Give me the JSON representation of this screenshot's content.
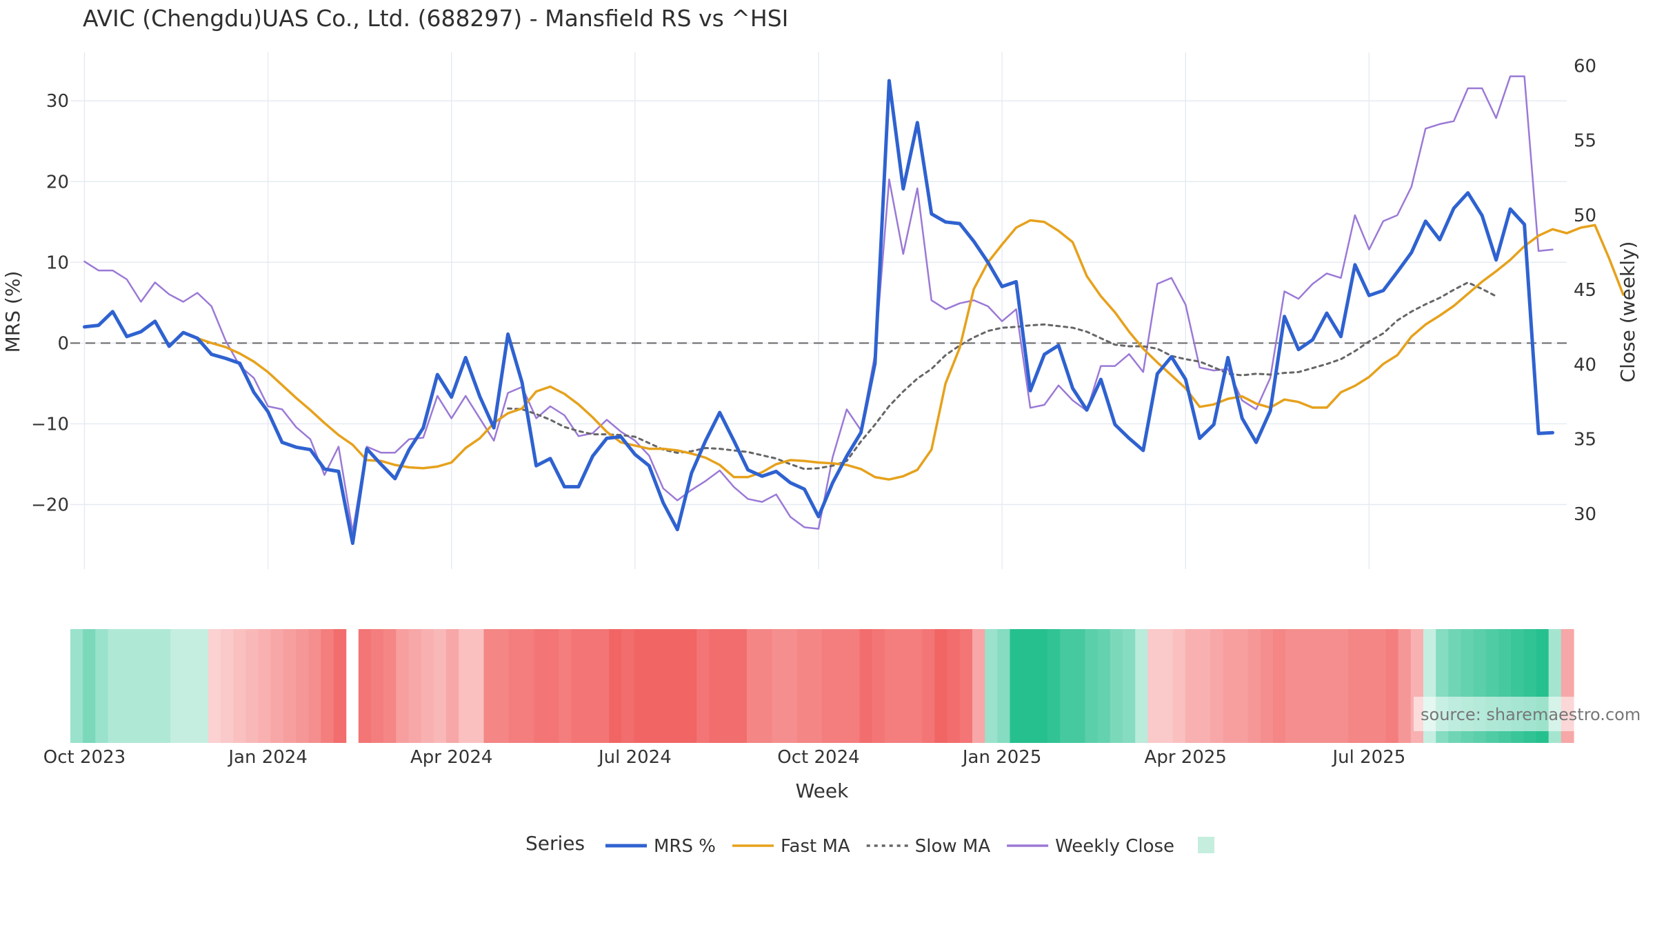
{
  "chart_data": {
    "type": "line",
    "title": "AVIC (Chengdu)UAS Co., Ltd. (688297) - Mansfield RS vs ^HSI",
    "xlabel": "Week",
    "ylabel": "MRS (%)",
    "y2label": "Close (weekly)",
    "legend_title": "Series",
    "legend_position": "bottom-center",
    "grid": true,
    "ylim": [
      -28,
      36
    ],
    "y2lim": [
      26.3,
      60.9
    ],
    "yticks": [
      -20,
      -10,
      0,
      10,
      20,
      30
    ],
    "yticklabels": [
      "−20",
      "−10",
      "0",
      "10",
      "20",
      "30"
    ],
    "y2ticks": [
      30,
      35,
      40,
      45,
      50,
      55,
      60
    ],
    "xlim_weeks": [
      -1,
      105
    ],
    "xticks": [
      {
        "label": "Oct 2023",
        "week": 0
      },
      {
        "label": "Jan 2024",
        "week": 13
      },
      {
        "label": "Apr 2024",
        "week": 26
      },
      {
        "label": "Jul 2024",
        "week": 39
      },
      {
        "label": "Oct 2024",
        "week": 52
      },
      {
        "label": "Jan 2025",
        "week": 65
      },
      {
        "label": "Apr 2025",
        "week": 78
      },
      {
        "label": "Jul 2025",
        "week": 91
      }
    ],
    "series": [
      {
        "name": "MRS %",
        "axis": "left",
        "color": "#2f62d0",
        "style": "solid",
        "start_week": 0,
        "values": [
          2.0,
          2.2,
          3.9,
          0.8,
          1.4,
          2.7,
          -0.4,
          1.3,
          0.6,
          -1.4,
          -1.9,
          -2.5,
          -6.1,
          -8.5,
          -12.3,
          -12.9,
          -13.2,
          -15.6,
          -15.9,
          -24.8,
          -13.1,
          -15.0,
          -16.8,
          -13.2,
          -10.5,
          -3.9,
          -6.7,
          -1.8,
          -6.6,
          -10.5,
          1.1,
          -4.9,
          -15.2,
          -14.3,
          -17.8,
          -17.8,
          -14.0,
          -11.8,
          -11.6,
          -13.8,
          -15.2,
          -19.8,
          -23.1,
          -16.1,
          -12.1,
          -8.6,
          -12.1,
          -15.7,
          -16.5,
          -15.9,
          -17.3,
          -18.1,
          -21.5,
          -17.3,
          -14.0,
          -11.1,
          -2.5,
          32.5,
          19.1,
          27.3,
          16.0,
          15.0,
          14.8,
          12.6,
          10.0,
          7.0,
          7.6,
          -5.9,
          -1.4,
          -0.3,
          -5.6,
          -8.3,
          -4.5,
          -10.1,
          -11.8,
          -13.3,
          -3.8,
          -1.7,
          -4.5,
          -11.8,
          -10.1,
          -1.8,
          -9.3,
          -12.3,
          -8.4,
          3.3,
          -0.8,
          0.4,
          3.7,
          0.8,
          9.7,
          5.9,
          6.5,
          8.8,
          11.2,
          15.1,
          12.8,
          16.7,
          18.6,
          15.8,
          10.3,
          16.6,
          14.7,
          -11.2,
          -11.1
        ]
      },
      {
        "name": "Fast MA",
        "axis": "left",
        "color": "#e6a11c",
        "style": "solid",
        "start_week": 8,
        "values": [
          0.6,
          0.0,
          -0.5,
          -1.3,
          -2.3,
          -3.6,
          -5.2,
          -6.8,
          -8.3,
          -9.9,
          -11.4,
          -12.6,
          -14.5,
          -14.6,
          -15.1,
          -15.4,
          -15.5,
          -15.3,
          -14.8,
          -13.0,
          -11.8,
          -9.9,
          -8.7,
          -8.1,
          -6.0,
          -5.4,
          -6.3,
          -7.6,
          -9.2,
          -11.0,
          -12.3,
          -12.7,
          -13.1,
          -13.1,
          -13.3,
          -13.7,
          -14.2,
          -15.1,
          -16.6,
          -16.6,
          -16.0,
          -15.0,
          -14.5,
          -14.6,
          -14.8,
          -14.9,
          -15.1,
          -15.6,
          -16.6,
          -16.9,
          -16.5,
          -15.7,
          -13.2,
          -5.0,
          -0.6,
          6.7,
          10.0,
          12.2,
          14.3,
          15.2,
          15.0,
          13.9,
          12.5,
          8.3,
          5.8,
          3.8,
          1.4,
          -0.7,
          -2.4,
          -4.0,
          -5.6,
          -7.9,
          -7.6,
          -6.9,
          -6.6,
          -7.5,
          -8.0,
          -7.0,
          -7.3,
          -8.0,
          -8.0,
          -6.1,
          -5.3,
          -4.2,
          -2.6,
          -1.5,
          0.8,
          2.3,
          3.4,
          4.6,
          6.1,
          7.6,
          8.9,
          10.3,
          12.0,
          13.3,
          14.1,
          13.6,
          14.3,
          14.6,
          10.5,
          6.0
        ]
      },
      {
        "name": "Slow MA",
        "axis": "left",
        "color": "#666666",
        "style": "dotted",
        "start_week": 30,
        "values": [
          -8.1,
          -8.2,
          -8.8,
          -9.5,
          -10.4,
          -10.9,
          -11.3,
          -11.3,
          -11.4,
          -11.6,
          -12.4,
          -13.2,
          -13.6,
          -13.4,
          -13.0,
          -13.1,
          -13.3,
          -13.5,
          -13.9,
          -14.3,
          -15.0,
          -15.6,
          -15.5,
          -15.2,
          -14.6,
          -12.2,
          -10.1,
          -7.8,
          -6.0,
          -4.4,
          -3.2,
          -1.5,
          -0.3,
          0.7,
          1.5,
          1.9,
          2.0,
          2.2,
          2.3,
          2.1,
          1.9,
          1.4,
          0.6,
          -0.2,
          -0.4,
          -0.4,
          -0.7,
          -1.6,
          -2.0,
          -2.3,
          -3.0,
          -3.8,
          -4.0,
          -3.8,
          -3.9,
          -3.7,
          -3.6,
          -3.1,
          -2.6,
          -2.0,
          -1.0,
          0.2,
          1.2,
          2.8,
          3.9,
          4.8,
          5.6,
          6.6,
          7.5,
          6.7,
          5.8
        ]
      },
      {
        "name": "Weekly Close",
        "axis": "right",
        "color": "#9b79d6",
        "style": "solid",
        "start_week": 0,
        "values": [
          46.9,
          46.3,
          46.3,
          45.7,
          44.2,
          45.5,
          44.7,
          44.2,
          44.8,
          43.9,
          41.6,
          39.9,
          39.1,
          37.2,
          37.0,
          35.8,
          35.0,
          32.6,
          34.5,
          28.8,
          34.5,
          34.1,
          34.1,
          35.0,
          35.1,
          37.9,
          36.4,
          37.9,
          36.4,
          34.9,
          38.1,
          38.5,
          36.4,
          37.2,
          36.6,
          35.2,
          35.4,
          36.3,
          35.5,
          34.9,
          33.9,
          31.7,
          30.9,
          31.6,
          32.2,
          32.9,
          31.8,
          31.0,
          30.8,
          31.3,
          29.8,
          29.1,
          29.0,
          33.8,
          37.0,
          35.6,
          40.7,
          52.4,
          47.4,
          51.8,
          44.3,
          43.7,
          44.1,
          44.3,
          43.9,
          42.9,
          43.7,
          37.1,
          37.3,
          38.6,
          37.6,
          36.9,
          39.9,
          39.9,
          40.7,
          39.5,
          45.4,
          45.8,
          44.0,
          39.8,
          39.6,
          39.7,
          37.6,
          37.0,
          39.1,
          44.9,
          44.4,
          45.4,
          46.1,
          45.8,
          50.0,
          47.7,
          49.6,
          50.0,
          51.9,
          55.8,
          56.1,
          56.3,
          58.5,
          58.5,
          56.5,
          59.3,
          59.3,
          47.6,
          47.7
        ]
      }
    ],
    "heat_strip": {
      "description_label": "",
      "values": [
        5,
        8,
        5,
        3,
        3,
        3,
        3,
        3,
        1,
        1,
        1,
        -1,
        -2,
        -3,
        -4,
        -5,
        -6,
        -7,
        -8,
        -9,
        -11,
        -13,
        null,
        -12,
        -11,
        -10,
        -7,
        -6,
        -5,
        -4,
        -6,
        -3,
        -3,
        -10,
        -10,
        -11,
        -11,
        -12,
        -12,
        -11,
        -12,
        -12,
        -12,
        -14,
        -13,
        -14,
        -14,
        -14,
        -14,
        -14,
        -12,
        -13,
        -13,
        -13,
        -10,
        -10,
        -9,
        -9,
        -10,
        -10,
        -11,
        -11,
        -11,
        -13,
        -12,
        -11,
        -11,
        -11,
        -12,
        -14,
        -13,
        -12,
        -6,
        5,
        7,
        16,
        16,
        16,
        15,
        13,
        13,
        11,
        10,
        8,
        7,
        2,
        -2,
        -2,
        -3,
        -5,
        -5,
        -6,
        -7,
        -7,
        -8,
        -9,
        -10,
        -9,
        -9,
        -9,
        -9,
        -9,
        -10,
        -10,
        -10,
        -11,
        -8,
        -5,
        1,
        7,
        9,
        10,
        11,
        12,
        13,
        14,
        15,
        16,
        4,
        -6
      ]
    },
    "legend": [
      {
        "name": "MRS %",
        "color": "#2f62d0",
        "style": "solid"
      },
      {
        "name": "Fast MA",
        "color": "#e6a11c",
        "style": "solid"
      },
      {
        "name": "Slow MA",
        "color": "#666666",
        "style": "dotted"
      },
      {
        "name": "Weekly Close",
        "color": "#9b79d6",
        "style": "solid"
      },
      {
        "name": "",
        "color": "#c6eedf",
        "style": "swatch"
      }
    ],
    "annotation": "source: sharemaestro.com"
  }
}
